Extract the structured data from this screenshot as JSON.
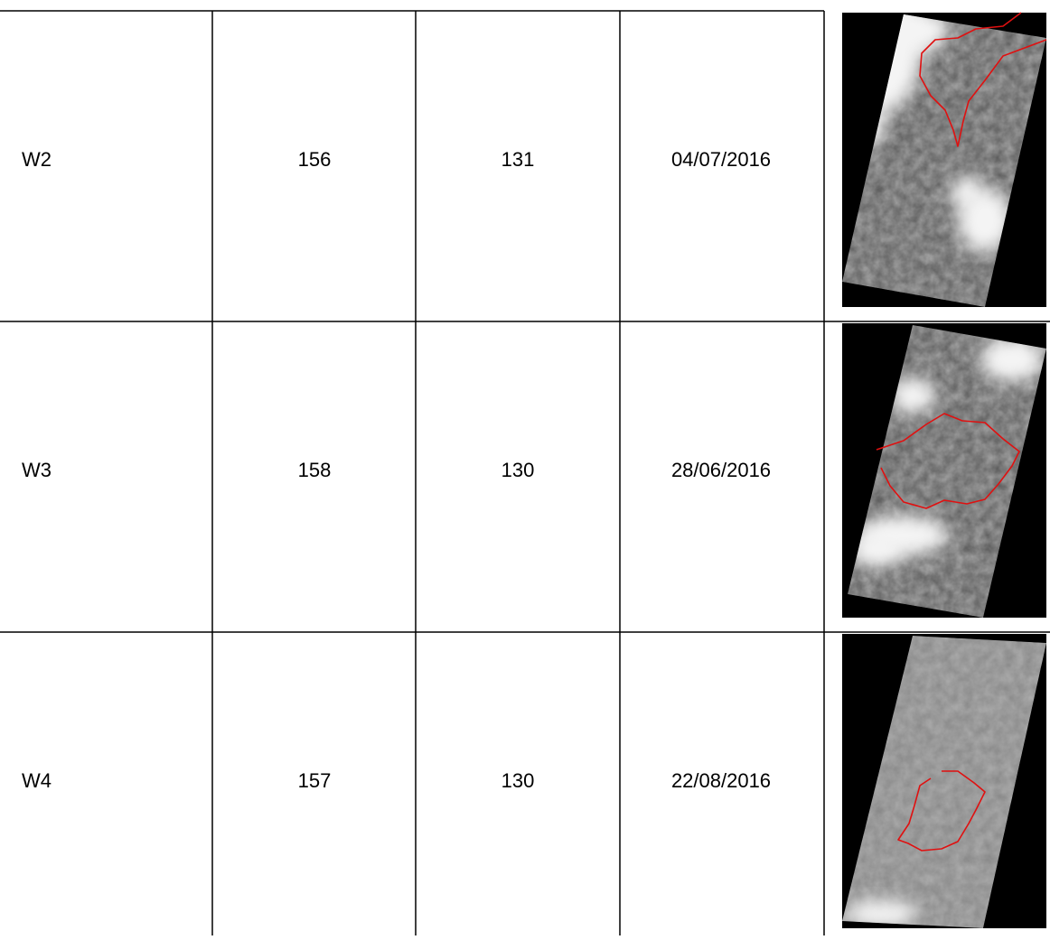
{
  "table": {
    "rows": [
      [
        "W2",
        156,
        131,
        "04/07/2016"
      ],
      [
        "W3",
        158,
        130,
        "28/06/2016"
      ],
      [
        "W4",
        157,
        130,
        "22/08/2016"
      ]
    ]
  }
}
